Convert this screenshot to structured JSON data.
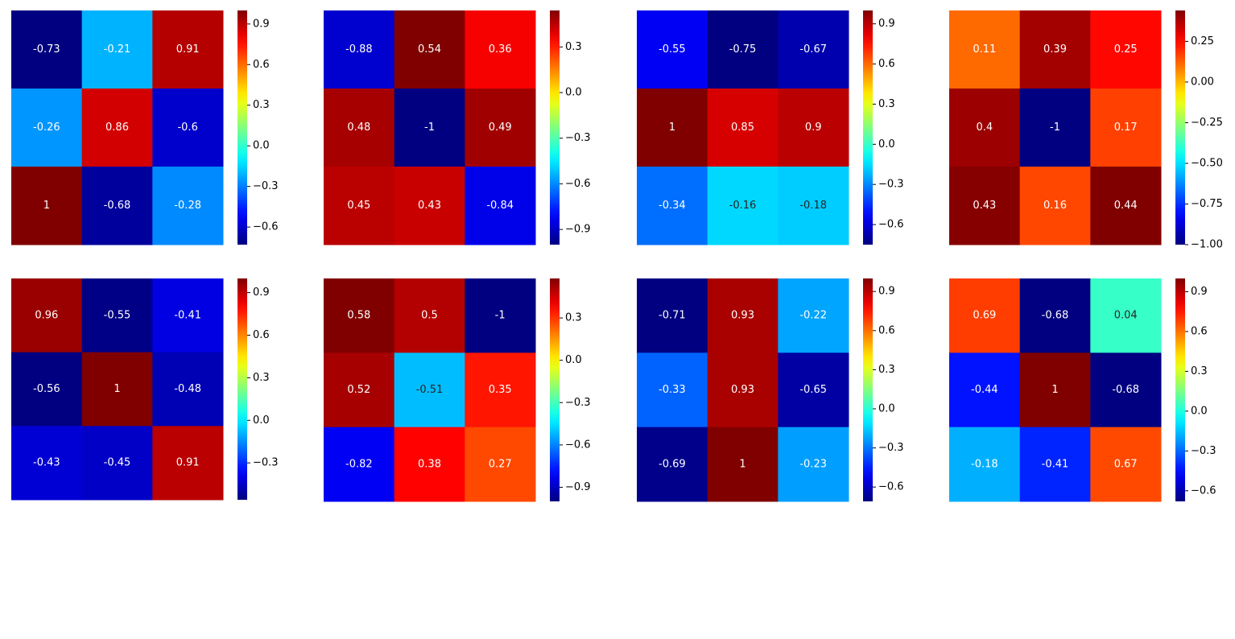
{
  "colormap": "jet",
  "chart_data": [
    {
      "type": "heatmap",
      "values": [
        [
          -0.73,
          -0.21,
          0.91
        ],
        [
          -0.26,
          0.86,
          -0.6
        ],
        [
          1,
          -0.68,
          -0.28
        ]
      ],
      "vmin": -0.73,
      "vmax": 1.0,
      "colorbar_ticks": [
        "0.9",
        "0.6",
        "0.3",
        "0.0",
        "−0.3",
        "−0.6"
      ]
    },
    {
      "type": "heatmap",
      "values": [
        [
          -0.88,
          0.54,
          0.36
        ],
        [
          0.48,
          -1,
          0.49
        ],
        [
          0.45,
          0.43,
          -0.84
        ]
      ],
      "vmin": -1.0,
      "vmax": 0.54,
      "colorbar_ticks": [
        "0.3",
        "0.0",
        "−0.3",
        "−0.6",
        "−0.9"
      ]
    },
    {
      "type": "heatmap",
      "values": [
        [
          -0.55,
          -0.75,
          -0.67
        ],
        [
          1,
          0.85,
          0.9
        ],
        [
          -0.34,
          -0.16,
          -0.18
        ]
      ],
      "vmin": -0.75,
      "vmax": 1.0,
      "colorbar_ticks": [
        "0.9",
        "0.6",
        "0.3",
        "0.0",
        "−0.3",
        "−0.6"
      ]
    },
    {
      "type": "heatmap",
      "values": [
        [
          0.11,
          0.39,
          0.25
        ],
        [
          0.4,
          -1,
          0.17
        ],
        [
          0.43,
          0.16,
          0.44
        ]
      ],
      "vmin": -1.0,
      "vmax": 0.44,
      "colorbar_ticks": [
        "0.25",
        "0.00",
        "−0.25",
        "−0.50",
        "−0.75",
        "−1.00"
      ]
    },
    {
      "type": "heatmap",
      "values": [
        [
          0.96,
          -0.55,
          -0.41
        ],
        [
          -0.56,
          1,
          -0.48
        ],
        [
          -0.43,
          -0.45,
          0.91
        ]
      ],
      "vmin": -0.56,
      "vmax": 1.0,
      "colorbar_ticks": [
        "0.9",
        "0.6",
        "0.3",
        "0.0",
        "−0.3"
      ]
    },
    {
      "type": "heatmap",
      "values": [
        [
          0.58,
          0.5,
          -1
        ],
        [
          0.52,
          -0.51,
          0.35
        ],
        [
          -0.82,
          0.38,
          0.27
        ]
      ],
      "vmin": -1.0,
      "vmax": 0.58,
      "colorbar_ticks": [
        "0.3",
        "0.0",
        "−0.3",
        "−0.6",
        "−0.9"
      ]
    },
    {
      "type": "heatmap",
      "values": [
        [
          -0.71,
          0.93,
          -0.22
        ],
        [
          -0.33,
          0.93,
          -0.65
        ],
        [
          -0.69,
          1,
          -0.23
        ]
      ],
      "vmin": -0.71,
      "vmax": 1.0,
      "colorbar_ticks": [
        "0.9",
        "0.6",
        "0.3",
        "0.0",
        "−0.3",
        "−0.6"
      ]
    },
    {
      "type": "heatmap",
      "values": [
        [
          0.69,
          -0.68,
          0.04
        ],
        [
          -0.44,
          1,
          -0.68
        ],
        [
          -0.18,
          -0.41,
          0.67
        ]
      ],
      "vmin": -0.68,
      "vmax": 1.0,
      "colorbar_ticks": [
        "0.9",
        "0.6",
        "0.3",
        "0.0",
        "−0.3",
        "−0.6"
      ]
    }
  ]
}
